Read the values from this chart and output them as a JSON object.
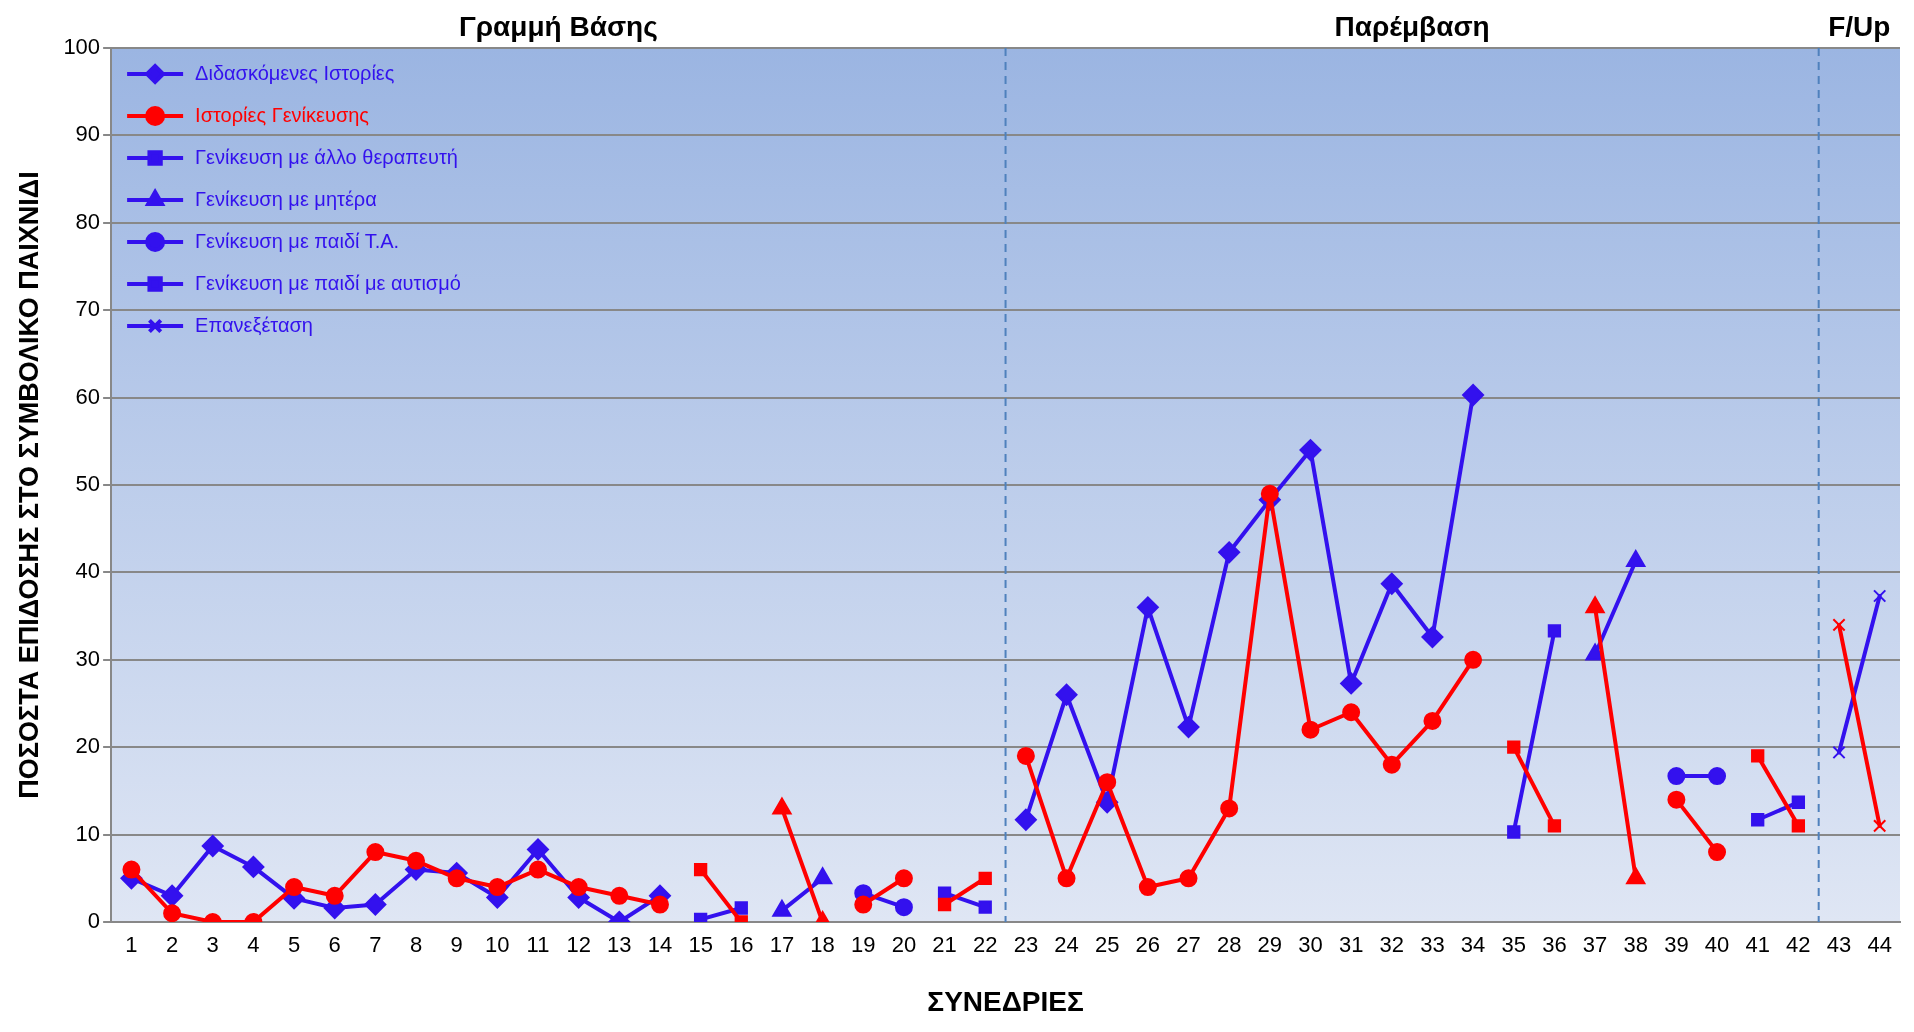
{
  "chart_data": {
    "type": "line",
    "xlabel": "ΣΥΝΕΔΡΙΕΣ",
    "ylabel": "ΠΟΣΟΣΤΑ ΕΠΙΔΟΣΗΣ ΣΤΟ ΣΥΜΒΟΛΙΚΟ ΠΑΙΧΝΙΔΙ",
    "xlim": [
      0.5,
      44.5
    ],
    "xticks": [
      1,
      2,
      3,
      4,
      5,
      6,
      7,
      8,
      9,
      10,
      11,
      12,
      13,
      14,
      15,
      16,
      17,
      18,
      19,
      20,
      21,
      22,
      23,
      24,
      25,
      26,
      27,
      28,
      29,
      30,
      31,
      32,
      33,
      34,
      35,
      36,
      37,
      38,
      39,
      40,
      41,
      42,
      43,
      44
    ],
    "ylim": [
      0,
      100
    ],
    "yticks": [
      0,
      10,
      20,
      30,
      40,
      50,
      60,
      70,
      80,
      90,
      100
    ],
    "grid": "y",
    "legend": "top left",
    "line_style": "solid",
    "annotations": [
      "Γραμμή Βάσης",
      "Παρέμβαση",
      "F/Up"
    ],
    "ref_lines": [
      {
        "axis": "x",
        "value": 22.5,
        "color": "#4f81bd",
        "line_style": "dashed"
      },
      {
        "axis": "x",
        "value": 42.5,
        "color": "#4f81bd",
        "line_style": "dashed"
      }
    ],
    "series": [
      {
        "name": "Διδασκόμενες Ιστορίες",
        "color": "#3311ee",
        "marker": "diamond",
        "x": [
          1,
          2,
          3,
          4,
          5,
          6,
          7,
          8,
          9,
          10,
          11,
          12,
          13,
          14,
          15,
          23,
          24,
          25,
          26,
          27,
          28,
          29,
          30,
          31,
          32,
          33,
          34
        ],
        "values": [
          5,
          3,
          8.7,
          6.3,
          2.7,
          1.6,
          2,
          6,
          5.6,
          2.8,
          8.3,
          2.8,
          0,
          3,
          null,
          11.7,
          26,
          13.7,
          36,
          22.3,
          42.3,
          48.3,
          54,
          27.3,
          38.7,
          32.6,
          60.3
        ]
      },
      {
        "name": "Ιστορίες Γενίκευσης",
        "color": "#ff0000",
        "marker": "circle",
        "x": [
          1,
          2,
          3,
          4,
          5,
          6,
          7,
          8,
          9,
          10,
          11,
          12,
          13,
          14,
          15,
          23,
          24,
          25,
          26,
          27,
          28,
          29,
          30,
          31,
          32,
          33,
          34
        ],
        "values": [
          6,
          1,
          0,
          0,
          4,
          3,
          8,
          7,
          5,
          4,
          6,
          4,
          3,
          2,
          null,
          19,
          5,
          16,
          4,
          5,
          13,
          49,
          22,
          24,
          18,
          23,
          30
        ]
      },
      {
        "name": "Γενίκευση με άλλο θεραπευτή",
        "color": "#3311ee",
        "marker": "square",
        "x": [
          15,
          16,
          17,
          35,
          36
        ],
        "values": [
          0.3,
          1.6,
          null,
          10.3,
          33.3
        ]
      },
      {
        "color": "#ff0000",
        "marker": "square",
        "x": [
          15,
          16,
          17,
          35,
          36
        ],
        "values": [
          6,
          0,
          null,
          20,
          11
        ]
      },
      {
        "name": "Γενίκευση με μητέρα",
        "color": "#3311ee",
        "marker": "triangle",
        "x": [
          17,
          18,
          19,
          37,
          38
        ],
        "values": [
          1.3,
          5,
          null,
          30.6,
          41.3
        ]
      },
      {
        "color": "#ff0000",
        "marker": "triangle",
        "x": [
          17,
          18,
          19,
          37,
          38
        ],
        "values": [
          13,
          0,
          null,
          36,
          5
        ]
      },
      {
        "name": "Γενίκευση με παιδί Τ.Α.",
        "color": "#3311ee",
        "marker": "circle",
        "x": [
          19,
          20,
          21,
          39,
          40
        ],
        "values": [
          3.3,
          1.7,
          null,
          16.7,
          16.7
        ]
      },
      {
        "color": "#ff0000",
        "marker": "circle",
        "x": [
          19,
          20,
          21,
          39,
          40
        ],
        "values": [
          2,
          5,
          null,
          14,
          8
        ]
      },
      {
        "name": "Γενίκευση με παιδί με αυτισμό",
        "color": "#3311ee",
        "marker": "square",
        "x": [
          21,
          22,
          23,
          41,
          42
        ],
        "values": [
          3.3,
          1.7,
          null,
          11.7,
          13.7
        ]
      },
      {
        "color": "#ff0000",
        "marker": "square",
        "x": [
          21,
          22,
          23,
          41,
          42
        ],
        "values": [
          2,
          5,
          null,
          19,
          11
        ]
      },
      {
        "name": "Επανεξέταση",
        "color": "#3311ee",
        "marker": "cross",
        "x": [
          43,
          44
        ],
        "values": [
          19.4,
          37.3
        ]
      },
      {
        "color": "#ff0000",
        "marker": "cross",
        "x": [
          43,
          44
        ],
        "values": [
          34,
          11
        ]
      }
    ]
  }
}
